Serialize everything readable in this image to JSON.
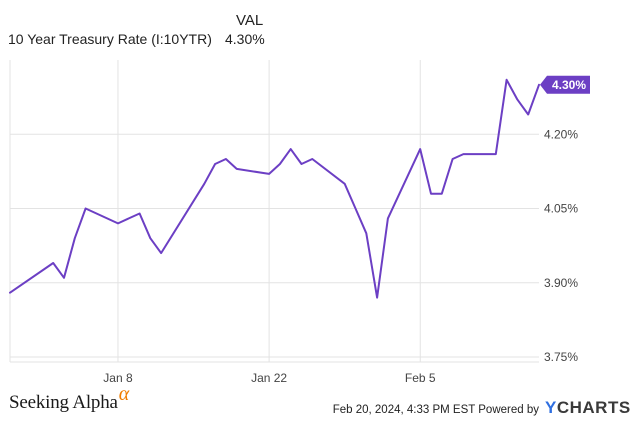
{
  "legend": {
    "header": "VAL",
    "series_name": "10 Year Treasury Rate (I:10YTR)",
    "series_value": "4.30%"
  },
  "footer": {
    "brand": "Seeking Alpha",
    "brand_symbol": "α",
    "meta": "Feb 20, 2024, 4:33 PM EST Powered by",
    "provider_prefix": "Y",
    "provider_rest": "CHARTS"
  },
  "chart_data": {
    "type": "line",
    "series": [
      {
        "name": "10 Year Treasury Rate (I:10YTR)",
        "color": "#6c3fc4",
        "x": [
          "2023-12-29",
          "2024-01-02",
          "2024-01-03",
          "2024-01-04",
          "2024-01-05",
          "2024-01-08",
          "2024-01-09",
          "2024-01-10",
          "2024-01-11",
          "2024-01-12",
          "2024-01-16",
          "2024-01-17",
          "2024-01-18",
          "2024-01-19",
          "2024-01-22",
          "2024-01-23",
          "2024-01-24",
          "2024-01-25",
          "2024-01-26",
          "2024-01-29",
          "2024-01-30",
          "2024-01-31",
          "2024-02-01",
          "2024-02-02",
          "2024-02-05",
          "2024-02-06",
          "2024-02-07",
          "2024-02-08",
          "2024-02-09",
          "2024-02-12",
          "2024-02-13",
          "2024-02-14",
          "2024-02-15",
          "2024-02-16"
        ],
        "values": [
          3.88,
          3.94,
          3.91,
          3.99,
          4.05,
          4.02,
          4.03,
          4.04,
          3.99,
          3.96,
          4.1,
          4.14,
          4.15,
          4.13,
          4.12,
          4.14,
          4.17,
          4.14,
          4.15,
          4.1,
          4.05,
          4.0,
          3.87,
          4.03,
          4.17,
          4.08,
          4.08,
          4.15,
          4.16,
          4.16,
          4.31,
          4.27,
          4.24,
          4.3
        ]
      }
    ],
    "x_ticks": [
      {
        "date": "2024-01-08",
        "label": "Jan 8"
      },
      {
        "date": "2024-01-22",
        "label": "Jan 22"
      },
      {
        "date": "2024-02-05",
        "label": "Feb 5"
      }
    ],
    "y_ticks": [
      {
        "value": 3.75,
        "label": "3.75%"
      },
      {
        "value": 3.9,
        "label": "3.90%"
      },
      {
        "value": 4.05,
        "label": "4.05%"
      },
      {
        "value": 4.2,
        "label": "4.20%"
      }
    ],
    "ylim": [
      3.74,
      4.35
    ],
    "grid": true,
    "last_value_label": "4.30%",
    "accent_color": "#6c3fc4",
    "grid_color": "#e3e3e3"
  }
}
